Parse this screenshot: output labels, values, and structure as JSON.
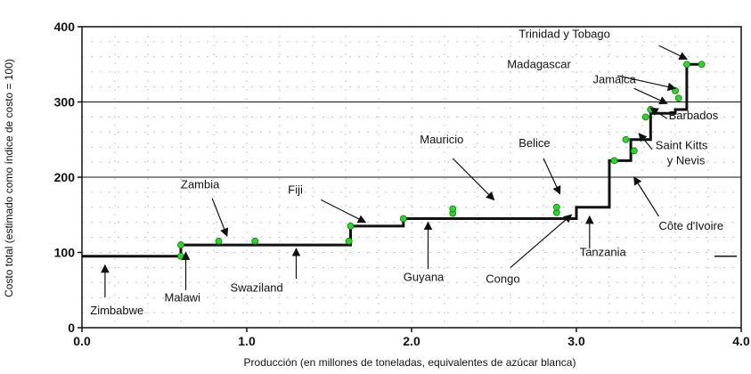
{
  "chart_data": {
    "type": "line",
    "xlabel": "Producción (en millones de toneladas, equivalentes de azúcar blanca)",
    "ylabel": "Costo total (estimado como índice de costo = 100)",
    "xlim": [
      0,
      4
    ],
    "ylim": [
      0,
      400
    ],
    "xticks": [
      0,
      1,
      2,
      3,
      4
    ],
    "xtick_labels": [
      "0.0",
      "1.0",
      "2.0",
      "3.0",
      "4.0"
    ],
    "yticks": [
      0,
      100,
      200,
      300,
      400
    ],
    "ytick_labels": [
      "0",
      "100",
      "200",
      "300",
      "400"
    ],
    "hlines": [
      200,
      300
    ],
    "grid": "dotted",
    "series": [
      {
        "step_x": [
          0,
          0.6,
          0.6,
          1.63,
          1.63,
          1.95,
          1.95,
          3.0,
          3.0,
          3.2,
          3.2,
          3.33,
          3.33,
          3.45,
          3.45,
          3.6,
          3.6,
          3.67,
          3.67,
          3.75
        ],
        "step_y": [
          95,
          95,
          110,
          110,
          135,
          135,
          145,
          145,
          160,
          160,
          222,
          222,
          250,
          250,
          285,
          285,
          290,
          290,
          350,
          350
        ],
        "points": [
          {
            "x": 0.6,
            "y": 95
          },
          {
            "x": 0.6,
            "y": 110
          },
          {
            "x": 0.83,
            "y": 115
          },
          {
            "x": 1.05,
            "y": 115
          },
          {
            "x": 1.62,
            "y": 115
          },
          {
            "x": 1.63,
            "y": 135
          },
          {
            "x": 1.95,
            "y": 145
          },
          {
            "x": 2.25,
            "y": 152
          },
          {
            "x": 2.25,
            "y": 158
          },
          {
            "x": 2.88,
            "y": 153
          },
          {
            "x": 2.88,
            "y": 160
          },
          {
            "x": 3.23,
            "y": 222
          },
          {
            "x": 3.3,
            "y": 250
          },
          {
            "x": 3.35,
            "y": 235
          },
          {
            "x": 3.42,
            "y": 280
          },
          {
            "x": 3.45,
            "y": 290
          },
          {
            "x": 3.6,
            "y": 315
          },
          {
            "x": 3.62,
            "y": 305
          },
          {
            "x": 3.67,
            "y": 350
          },
          {
            "x": 3.76,
            "y": 350
          }
        ]
      }
    ],
    "annotations": [
      {
        "text": "Zimbabwe",
        "lx": 0.05,
        "ly": 18,
        "ax1": 0.14,
        "ay1": 40,
        "ax2": 0.14,
        "ay2": 83
      },
      {
        "text": "Malawi",
        "lx": 0.5,
        "ly": 35,
        "ax1": 0.63,
        "ay1": 50,
        "ax2": 0.63,
        "ay2": 100
      },
      {
        "text": "Swaziland",
        "lx": 0.9,
        "ly": 48,
        "ax1": 1.3,
        "ay1": 65,
        "ax2": 1.3,
        "ay2": 105
      },
      {
        "text": "Zambia",
        "lx": 0.6,
        "ly": 185,
        "ax1": 0.79,
        "ay1": 172,
        "ax2": 0.88,
        "ay2": 122
      },
      {
        "text": "Fiji",
        "lx": 1.25,
        "ly": 178,
        "ax1": 1.45,
        "ay1": 170,
        "ax2": 1.72,
        "ay2": 140
      },
      {
        "text": "Guyana",
        "lx": 1.95,
        "ly": 62,
        "ax1": 2.1,
        "ay1": 78,
        "ax2": 2.1,
        "ay2": 140
      },
      {
        "text": "Mauricio",
        "lx": 2.05,
        "ly": 245,
        "ax1": 2.25,
        "ay1": 225,
        "ax2": 2.5,
        "ay2": 170
      },
      {
        "text": "Belice",
        "lx": 2.65,
        "ly": 240,
        "ax1": 2.8,
        "ay1": 225,
        "ax2": 2.9,
        "ay2": 178
      },
      {
        "text": "Congo",
        "lx": 2.45,
        "ly": 60,
        "ax1": 2.6,
        "ay1": 80,
        "ax2": 2.97,
        "ay2": 150
      },
      {
        "text": "Tanzania",
        "lx": 3.02,
        "ly": 95,
        "ax1": 3.08,
        "ay1": 105,
        "ax2": 3.08,
        "ay2": 148
      },
      {
        "text": "Côte d'Ivoire",
        "lx": 3.5,
        "ly": 130,
        "ax1": 3.5,
        "ay1": 148,
        "ax2": 3.35,
        "ay2": 200
      },
      {
        "text": "Saint Kitts",
        "lx": 3.48,
        "ly": 237,
        "ax1": 3.46,
        "ay1": 237,
        "ax2": 3.38,
        "ay2": 258
      },
      {
        "text": "y Nevis",
        "lx": 3.55,
        "ly": 217,
        "ax1": null,
        "ay1": null,
        "ax2": null,
        "ay2": null
      },
      {
        "text": "Barbados",
        "lx": 3.56,
        "ly": 277,
        "ax1": 3.55,
        "ay1": 278,
        "ax2": 3.45,
        "ay2": 292
      },
      {
        "text": "Jamaica",
        "lx": 3.1,
        "ly": 325,
        "ax1": 3.35,
        "ay1": 318,
        "ax2": 3.55,
        "ay2": 298
      },
      {
        "text": "Madagascar",
        "lx": 2.58,
        "ly": 345,
        "ax1": 3.25,
        "ay1": 335,
        "ax2": 3.6,
        "ay2": 318
      },
      {
        "text": "Trinidad y Tobago",
        "lx": 2.65,
        "ly": 385,
        "ax1": 3.5,
        "ay1": 375,
        "ax2": 3.67,
        "ay2": 357
      }
    ]
  }
}
